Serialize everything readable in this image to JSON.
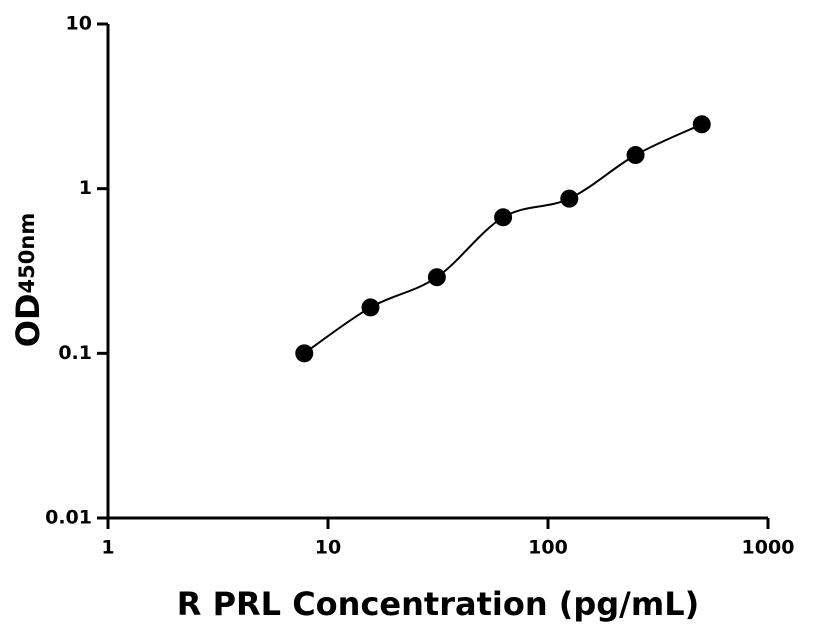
{
  "chart_data": {
    "type": "scatter",
    "x_label": "R PRL Concentration (pg/mL)",
    "y_label": "OD",
    "y_label_sub": "450nm",
    "log_x": true,
    "log_y": true,
    "xlim": [
      1,
      1000
    ],
    "xticks": [
      1,
      10,
      100,
      1000
    ],
    "ylim": [
      0.01,
      10
    ],
    "yticks": [
      0.01,
      0.1,
      1,
      10
    ],
    "series": [
      {
        "color": "#000000",
        "x": [
          7.8,
          15.6,
          31.25,
          62.5,
          125,
          250,
          500
        ],
        "values": [
          0.1,
          0.19,
          0.29,
          0.67,
          0.87,
          1.6,
          2.46
        ]
      }
    ]
  }
}
